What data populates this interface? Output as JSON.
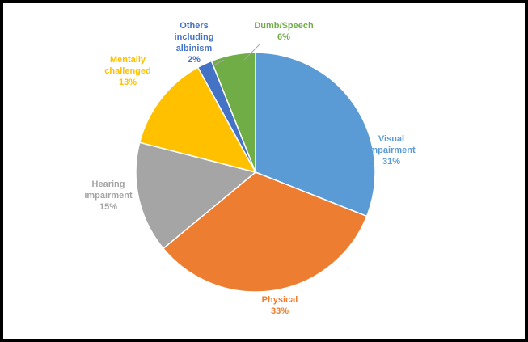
{
  "chart_data": {
    "type": "pie",
    "start_angle_deg": 0,
    "direction": "clockwise",
    "slices": [
      {
        "lines": [
          "Visual",
          "impairment"
        ],
        "value": 31,
        "value_label": "31%",
        "color": "#5B9BD5"
      },
      {
        "lines": [
          "Physical"
        ],
        "value": 33,
        "value_label": "33%",
        "color": "#ED7D31"
      },
      {
        "lines": [
          "Hearing",
          "impairment"
        ],
        "value": 15,
        "value_label": "15%",
        "color": "#A5A5A5"
      },
      {
        "lines": [
          "Mentally",
          "challenged"
        ],
        "value": 13,
        "value_label": "13%",
        "color": "#FFC000"
      },
      {
        "lines": [
          "Others",
          "including",
          "albinism"
        ],
        "value": 2,
        "value_label": "2%",
        "color": "#4472C4"
      },
      {
        "lines": [
          "Dumb/Speech"
        ],
        "value": 6,
        "value_label": "6%",
        "color": "#70AD47"
      }
    ]
  }
}
